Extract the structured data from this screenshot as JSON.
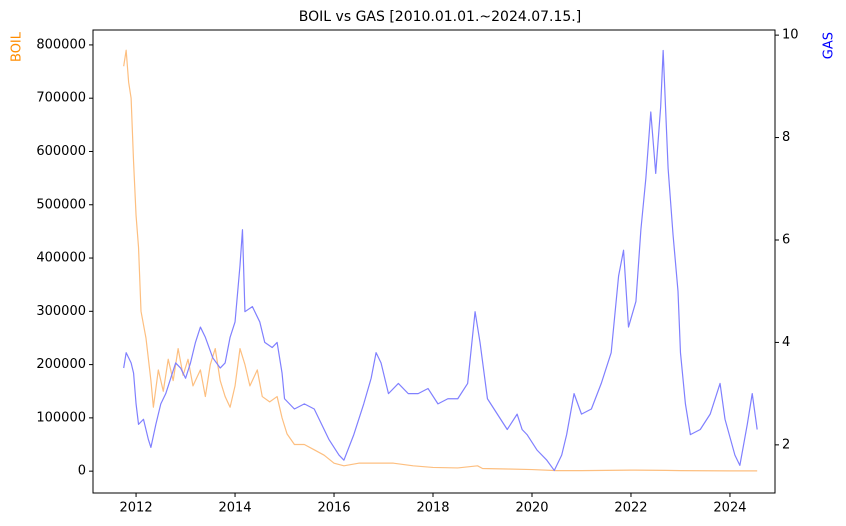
{
  "chart_data": {
    "type": "line",
    "title": "BOIL vs GAS [2010.01.01.~2024.07.15.]",
    "ylabel": "BOIL",
    "y2label": "GAS",
    "xlim": [
      2011.13,
      2024.91
    ],
    "xticks": [
      2012,
      2014,
      2016,
      2018,
      2020,
      2022,
      2024
    ],
    "ylim": [
      -41000,
      828000
    ],
    "yticks": [
      0,
      100000,
      200000,
      300000,
      400000,
      500000,
      600000,
      700000,
      800000
    ],
    "y2lim": [
      1.06,
      10.1
    ],
    "y2ticks": [
      2,
      4,
      6,
      8,
      10
    ],
    "grid": false,
    "series": [
      {
        "color": "#fdbf80",
        "axis": "y",
        "x": [
          2011.75,
          2011.8,
          2011.85,
          2011.9,
          2011.95,
          2012.0,
          2012.05,
          2012.1,
          2012.2,
          2012.3,
          2012.35,
          2012.45,
          2012.55,
          2012.65,
          2012.75,
          2012.85,
          2012.95,
          2013.05,
          2013.15,
          2013.3,
          2013.4,
          2013.5,
          2013.6,
          2013.7,
          2013.8,
          2013.9,
          2014.0,
          2014.1,
          2014.2,
          2014.3,
          2014.45,
          2014.55,
          2014.7,
          2014.85,
          2014.95,
          2015.05,
          2015.2,
          2015.4,
          2015.6,
          2015.8,
          2016.0,
          2016.2,
          2016.5,
          2016.8,
          2017.2,
          2017.6,
          2018.0,
          2018.5,
          2018.9,
          2019.0,
          2019.5,
          2020.0,
          2020.5,
          2021.0,
          2022.0,
          2022.7,
          2023.0,
          2024.0,
          2024.55
        ],
        "values": [
          760000,
          790000,
          730000,
          700000,
          580000,
          480000,
          420000,
          300000,
          250000,
          170000,
          120000,
          190000,
          150000,
          210000,
          170000,
          230000,
          180000,
          210000,
          160000,
          190000,
          140000,
          200000,
          230000,
          170000,
          140000,
          120000,
          160000,
          230000,
          200000,
          160000,
          190000,
          140000,
          130000,
          140000,
          100000,
          70000,
          50000,
          50000,
          40000,
          30000,
          15000,
          10000,
          15000,
          15000,
          15000,
          10000,
          7000,
          6000,
          10000,
          5000,
          4000,
          3000,
          1000,
          1000,
          2000,
          1500,
          1000,
          500,
          500
        ]
      },
      {
        "color": "#8080ff",
        "axis": "y2",
        "x": [
          2011.75,
          2011.8,
          2011.9,
          2011.95,
          2012.0,
          2012.05,
          2012.15,
          2012.25,
          2012.3,
          2012.4,
          2012.5,
          2012.6,
          2012.7,
          2012.8,
          2012.9,
          2013.0,
          2013.1,
          2013.2,
          2013.3,
          2013.4,
          2013.55,
          2013.7,
          2013.8,
          2013.9,
          2014.0,
          2014.1,
          2014.15,
          2014.2,
          2014.35,
          2014.5,
          2014.6,
          2014.75,
          2014.85,
          2014.95,
          2015.0,
          2015.2,
          2015.4,
          2015.6,
          2015.8,
          2015.9,
          2016.1,
          2016.2,
          2016.4,
          2016.6,
          2016.75,
          2016.85,
          2016.95,
          2017.1,
          2017.3,
          2017.5,
          2017.7,
          2017.9,
          2018.1,
          2018.3,
          2018.5,
          2018.7,
          2018.85,
          2018.95,
          2019.1,
          2019.3,
          2019.5,
          2019.7,
          2019.8,
          2019.9,
          2020.1,
          2020.3,
          2020.45,
          2020.6,
          2020.7,
          2020.85,
          2021.0,
          2021.2,
          2021.4,
          2021.6,
          2021.75,
          2021.85,
          2021.95,
          2022.1,
          2022.2,
          2022.3,
          2022.4,
          2022.5,
          2022.6,
          2022.65,
          2022.75,
          2022.85,
          2022.95,
          2023.0,
          2023.1,
          2023.2,
          2023.4,
          2023.6,
          2023.8,
          2023.9,
          2024.1,
          2024.2,
          2024.35,
          2024.45,
          2024.55
        ],
        "values": [
          3.5,
          3.8,
          3.6,
          3.4,
          2.8,
          2.4,
          2.5,
          2.1,
          1.95,
          2.4,
          2.8,
          3.0,
          3.3,
          3.6,
          3.5,
          3.3,
          3.6,
          4.0,
          4.3,
          4.1,
          3.7,
          3.5,
          3.6,
          4.1,
          4.4,
          5.5,
          6.2,
          4.6,
          4.7,
          4.4,
          4.0,
          3.9,
          4.0,
          3.4,
          2.9,
          2.7,
          2.8,
          2.7,
          2.3,
          2.1,
          1.8,
          1.7,
          2.2,
          2.8,
          3.3,
          3.8,
          3.6,
          3.0,
          3.2,
          3.0,
          3.0,
          3.1,
          2.8,
          2.9,
          2.9,
          3.2,
          4.6,
          4.0,
          2.9,
          2.6,
          2.3,
          2.6,
          2.3,
          2.2,
          1.9,
          1.7,
          1.5,
          1.8,
          2.2,
          3.0,
          2.6,
          2.7,
          3.2,
          3.8,
          5.3,
          5.8,
          4.3,
          4.8,
          6.2,
          7.2,
          8.5,
          7.3,
          8.6,
          9.7,
          7.4,
          6.1,
          5.0,
          3.8,
          2.8,
          2.2,
          2.3,
          2.6,
          3.2,
          2.5,
          1.8,
          1.6,
          2.4,
          3.0,
          2.3
        ]
      }
    ]
  }
}
